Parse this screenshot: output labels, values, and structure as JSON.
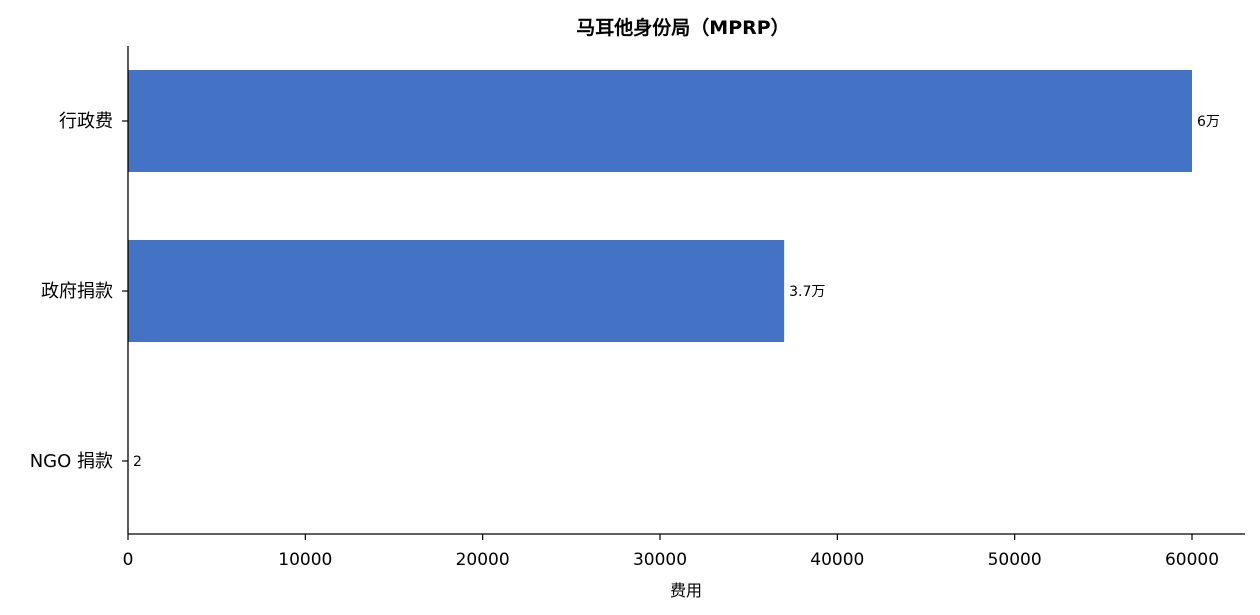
{
  "chart_data": {
    "type": "bar",
    "orientation": "horizontal",
    "title": "马耳他身份局（MPRP）",
    "xlabel": "费用",
    "ylabel": "",
    "categories": [
      "行政费",
      "政府捐款",
      "NGO 捐款"
    ],
    "values": [
      60000,
      37000,
      2
    ],
    "data_labels": [
      "6万",
      "3.7万",
      "2"
    ],
    "xlim": [
      0,
      63000
    ],
    "xticks": [
      0,
      10000,
      20000,
      30000,
      40000,
      50000,
      60000
    ],
    "xtick_labels": [
      "0",
      "10000",
      "20000",
      "30000",
      "40000",
      "50000",
      "60000"
    ],
    "bar_color": "#4472C4",
    "grid": false,
    "legend": "none"
  }
}
